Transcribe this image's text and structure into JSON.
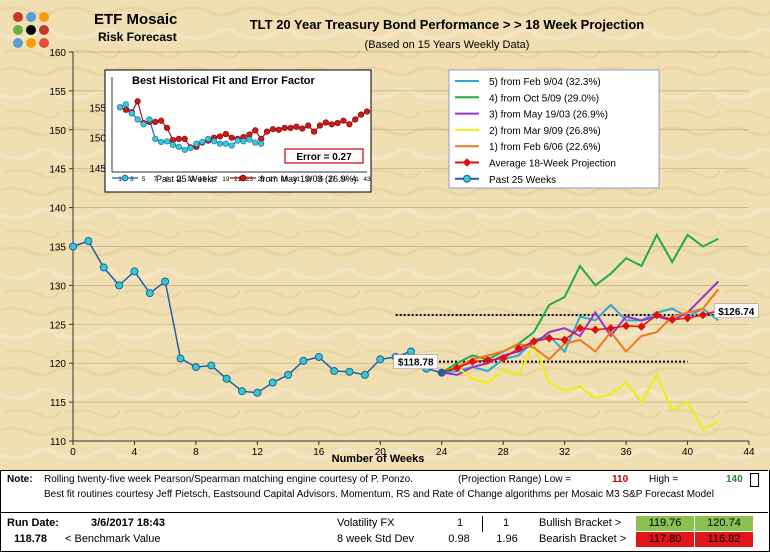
{
  "header": {
    "brand": "ETF Mosaic",
    "brand_sub": "Risk Forecast",
    "title": "TLT  20 Year Treasury Bond Performance  > > 18 Week Projection",
    "subtitle": "(Based on 15 Years Weekly Data)"
  },
  "logo_colors": [
    "#c0392b",
    "#5b9bd5",
    "#f39c12",
    "#70ad47",
    "#000000",
    "#c0392b",
    "#5b9bd5",
    "#f39c12",
    "#e74c3c"
  ],
  "colors": {
    "past": "#1f5fa6",
    "past_marker": "#33cccc",
    "avg": "#e01010",
    "legend_border": "#9999cc"
  },
  "chart_data": [
    {
      "type": "line",
      "title": "",
      "xlabel": "Number of Weeks",
      "ylabel": "",
      "xlim": [
        0,
        44
      ],
      "ylim": [
        110,
        160
      ],
      "xticks": [
        0,
        4,
        8,
        12,
        16,
        20,
        24,
        28,
        32,
        36,
        40,
        44
      ],
      "yticks": [
        110,
        115,
        120,
        125,
        130,
        135,
        140,
        145,
        150,
        155,
        160
      ],
      "past": {
        "name": "Past 25 Weeks",
        "x": [
          0,
          1,
          2,
          3,
          4,
          5,
          6,
          7,
          8,
          9,
          10,
          11,
          12,
          13,
          14,
          15,
          16,
          17,
          18,
          19,
          20,
          21,
          22,
          23,
          24
        ],
        "values": [
          135.0,
          135.7,
          132.3,
          130.0,
          131.8,
          129.0,
          130.5,
          120.6,
          119.5,
          119.7,
          118.0,
          116.4,
          116.2,
          117.5,
          118.5,
          120.3,
          120.8,
          119.0,
          118.9,
          118.5,
          120.5,
          120.8,
          121.5,
          119.3,
          118.78
        ]
      },
      "series": [
        {
          "name": "5)  from Feb 9/04 (32.3%)",
          "color": "#2ea8d8",
          "values": [
            118.8,
            119.0,
            119.5,
            119.0,
            120.5,
            121.0,
            123.0,
            123.5,
            121.5,
            126.0,
            125.5,
            127.5,
            125.5,
            125.5,
            126.5,
            127.0,
            126.0,
            127.0,
            125.5
          ]
        },
        {
          "name": "4)  from Oct 5/09 (29.0%)",
          "color": "#22aa44",
          "values": [
            118.8,
            120.0,
            121.0,
            120.5,
            121.5,
            122.5,
            124.0,
            127.5,
            128.5,
            132.5,
            130.0,
            131.5,
            133.5,
            132.5,
            136.5,
            133.0,
            136.5,
            135.0,
            136.0
          ]
        },
        {
          "name": "3)  from May 19/03 (26.9%)",
          "color": "#9933cc",
          "values": [
            118.8,
            118.5,
            119.5,
            120.0,
            121.0,
            121.5,
            122.5,
            124.0,
            124.5,
            123.5,
            126.5,
            123.5,
            126.0,
            125.5,
            126.0,
            125.5,
            126.5,
            128.5,
            130.5
          ]
        },
        {
          "name": "2)  from Mar 9/09 (26.8%)",
          "color": "#eeee11",
          "values": [
            118.8,
            119.5,
            118.0,
            117.5,
            119.0,
            118.5,
            122.5,
            117.5,
            116.5,
            117.0,
            115.5,
            116.0,
            117.5,
            115.0,
            118.5,
            114.0,
            115.0,
            111.5,
            112.5
          ]
        },
        {
          "name": "1)  from Feb 6/06 (22.6%)",
          "color": "#ee7722",
          "values": [
            118.8,
            119.5,
            120.5,
            121.0,
            121.5,
            122.5,
            122.0,
            120.5,
            122.5,
            123.0,
            121.5,
            124.0,
            121.5,
            123.5,
            124.0,
            126.0,
            126.5,
            127.0,
            129.5
          ]
        },
        {
          "name": "Average 18-Week Projection",
          "color": "#e01010",
          "values": [
            118.8,
            119.4,
            120.2,
            120.4,
            120.6,
            121.9,
            122.8,
            123.2,
            123.0,
            124.5,
            124.3,
            124.5,
            124.8,
            124.7,
            126.2,
            125.6,
            125.8,
            126.2,
            126.74
          ]
        }
      ],
      "series_x_start": 24,
      "range_low": 110,
      "range_high": 140,
      "bracket_lines": [
        {
          "y": 126.2,
          "x0": 21,
          "x1": 43
        },
        {
          "y": 120.2,
          "x0": 22,
          "x1": 40
        }
      ],
      "point_labels": [
        {
          "text": "$118.78",
          "x": 24,
          "y": 118.78
        },
        {
          "text": "$126.74",
          "x": 42,
          "y": 126.74
        }
      ],
      "legend_placement": "top-right"
    },
    {
      "type": "line",
      "title": "Best  Historical Fit and Error Factor",
      "xlabel": "",
      "ylabel": "",
      "xlim": [
        1,
        43
      ],
      "ylim": [
        145,
        160
      ],
      "xticks": [
        1,
        3,
        5,
        7,
        9,
        11,
        13,
        15,
        17,
        19,
        21,
        23,
        25,
        27,
        29,
        31,
        33,
        35,
        37,
        39,
        41,
        43
      ],
      "yticks": [
        145,
        150,
        155
      ],
      "past_name": "Past 25 Weeks",
      "past": [
        155.0,
        155.5,
        154.0,
        153.0,
        152.2,
        153.0,
        149.8,
        149.3,
        149.4,
        148.8,
        148.5,
        148.0,
        148.3,
        149.0,
        149.3,
        149.8,
        149.4,
        149.0,
        149.0,
        148.7,
        149.5,
        149.4,
        149.7,
        149.2,
        149.0
      ],
      "fit_name": "from May 19/03 (26.9%)",
      "fit": [
        155.0,
        154.6,
        154.2,
        156.0,
        152.4,
        152.6,
        152.6,
        152.8,
        151.6,
        149.6,
        149.8,
        149.8,
        148.4,
        148.5,
        149.2,
        149.5,
        150.0,
        150.2,
        150.6,
        150.0,
        149.8,
        150.1,
        150.5,
        151.2,
        149.8,
        151.0,
        151.4,
        151.3,
        151.6,
        151.6,
        151.8,
        151.5,
        152.0,
        151.0,
        152.0,
        152.5,
        152.2,
        152.4,
        152.8,
        152.2,
        153.0,
        153.8,
        154.3
      ],
      "error_label": "Error = 0.27"
    }
  ],
  "notes": {
    "label": "Note:",
    "line1": "Rolling twenty-five week Pearson/Spearman matching engine courtesy of P. Ponzo.",
    "range_label": "(Projection Range) Low =",
    "low": "110",
    "high_label": "High =",
    "high": "140",
    "line2": "Best fit routines courtesy Jeff Pietsch, Eastsound Capital Advisors.    Momentum, RS and Rate of Change algorithms per Mosaic M3 S&P Forecast Model"
  },
  "footer": {
    "run_label": "Run Date:",
    "run_date": "3/6/2017 18:43",
    "bench_value": "118.78",
    "bench_label": "< Benchmark Value",
    "vol_label": "Volatility FX",
    "vol1": "1",
    "vol2": "1",
    "std_label": "8 week Std Dev",
    "std1": "0.98",
    "std2": "1.96",
    "bull_label": "Bullish Bracket >",
    "bull1": "119.76",
    "bull2": "120.74",
    "bear_label": "Bearish Bracket >",
    "bear1": "117.80",
    "bear2": "116.82"
  }
}
